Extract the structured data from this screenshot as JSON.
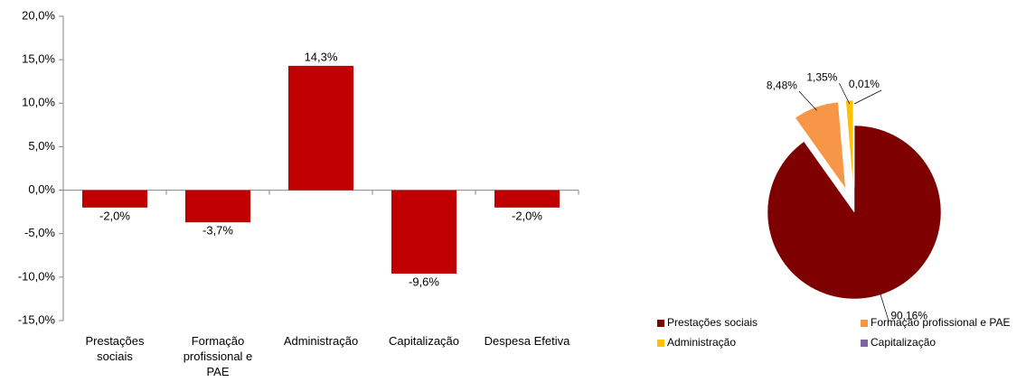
{
  "chart_data": [
    {
      "type": "bar",
      "categories": [
        "Prestações sociais",
        "Formação profissional e PAE",
        "Administração",
        "Capitalização",
        "Despesa Efetiva"
      ],
      "values": [
        -2.0,
        -3.7,
        14.3,
        -9.6,
        -2.0
      ],
      "value_labels": [
        "-2,0%",
        "-3,7%",
        "14,3%",
        "-9,6%",
        "-2,0%"
      ],
      "color": "#c00000",
      "ylim": [
        -15,
        20
      ],
      "yticks": [
        {
          "value": -15,
          "label": "-15,0%"
        },
        {
          "value": -10,
          "label": "-10,0%"
        },
        {
          "value": -5,
          "label": "-5,0%"
        },
        {
          "value": 0,
          "label": "0,0%"
        },
        {
          "value": 5,
          "label": "5,0%"
        },
        {
          "value": 10,
          "label": "10,0%"
        },
        {
          "value": 15,
          "label": "15,0%"
        },
        {
          "value": 20,
          "label": "20,0%"
        }
      ]
    },
    {
      "type": "pie",
      "categories": [
        "Prestações sociais",
        "Formação profissional e PAE",
        "Administração",
        "Capitalização"
      ],
      "values": [
        90.16,
        8.48,
        1.35,
        0.01
      ],
      "value_labels": [
        "90,16%",
        "8,48%",
        "1,35%",
        "0,01%"
      ],
      "colors": [
        "#7f0000",
        "#f79646",
        "#ffc000",
        "#8064a2"
      ],
      "legend": "bottom"
    }
  ]
}
